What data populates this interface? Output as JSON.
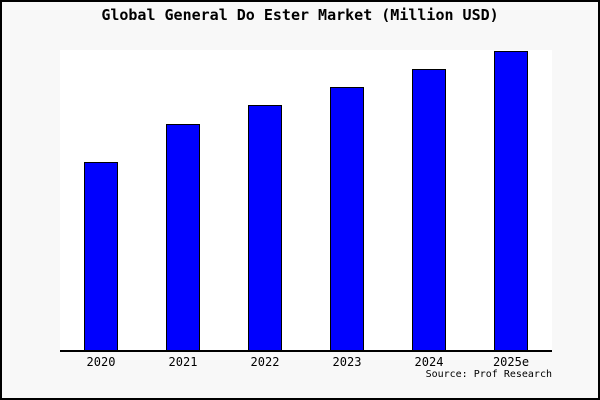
{
  "title": "Global General Do Ester Market (Million USD)",
  "source": "Source: Prof Research",
  "chart_data": {
    "type": "bar",
    "title": "Global General Do Ester Market (Million USD)",
    "categories": [
      "2020",
      "2021",
      "2022",
      "2023",
      "2024",
      "2025e"
    ],
    "values": [
      188,
      226,
      245,
      263,
      281,
      299
    ],
    "units": "relative height (y-axis shown without ticks or labels)",
    "xlabel": "",
    "ylabel": "",
    "ylim": [
      0,
      300
    ],
    "grid": false,
    "legend": false,
    "y_axis_labels_visible": false,
    "bar_color": "#0000fe",
    "bar_border_color": "#000000",
    "annotations": [
      "Source: Prof Research"
    ]
  },
  "colors": {
    "page_background": "#f8f8f8",
    "plot_background": "#ffffff",
    "bar_fill": "#0000fe",
    "bar_border": "#000000",
    "axis_line": "#000000",
    "outer_border": "#000000",
    "text": "#000000"
  }
}
